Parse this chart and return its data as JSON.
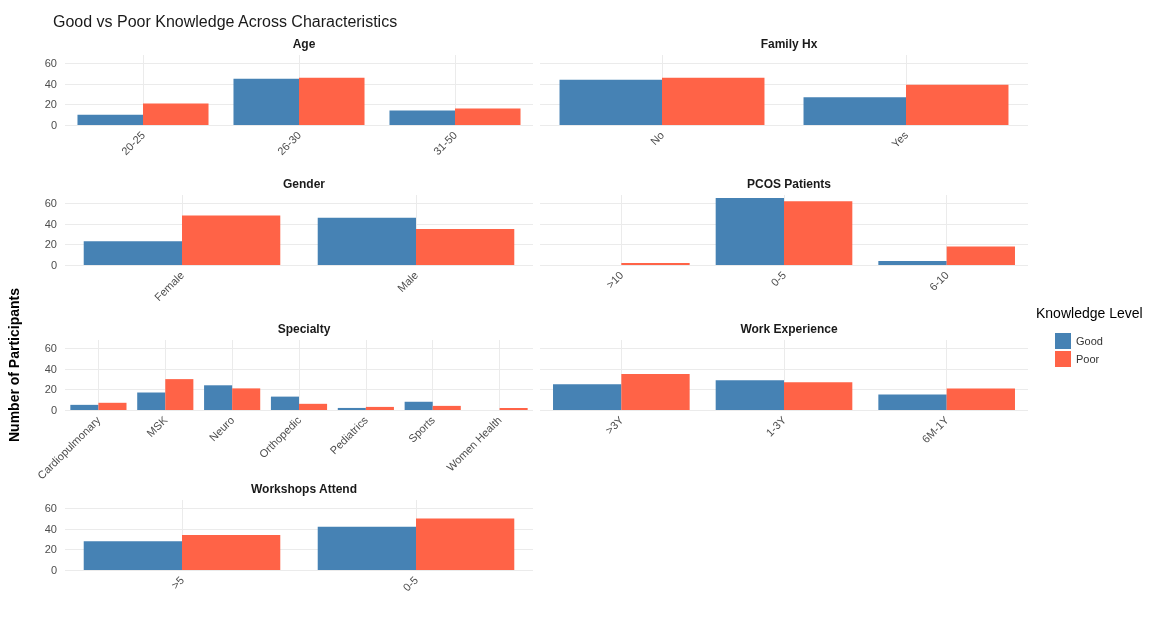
{
  "chart_data": [
    {
      "type": "bar",
      "title": "Good vs Poor Knowledge Across Characteristics",
      "subtitle": "Age",
      "legend_title": "Knowledge Level",
      "legend": "right",
      "grid": true,
      "ylim": [
        0,
        68
      ],
      "yticks": [
        0,
        20,
        40,
        60
      ],
      "categories": [
        "20-25",
        "26-30",
        "31-50"
      ],
      "series": [
        {
          "name": "Good",
          "color": "#4682b4",
          "values": [
            10,
            45,
            14
          ]
        },
        {
          "name": "Poor",
          "color": "#ff6347",
          "values": [
            21,
            46,
            16
          ]
        }
      ]
    },
    {
      "type": "bar",
      "subtitle": "Family Hx",
      "grid": true,
      "tick_labels": "x",
      "ylim": [
        0,
        68
      ],
      "yticks": [
        0,
        20,
        40,
        60
      ],
      "categories": [
        "No",
        "Yes"
      ],
      "series": [
        {
          "color": "#4682b4",
          "values": [
            44,
            27
          ]
        },
        {
          "color": "#ff6347",
          "values": [
            46,
            39
          ]
        }
      ]
    },
    {
      "type": "bar",
      "subtitle": "Gender",
      "grid": true,
      "ylim": [
        0,
        68
      ],
      "yticks": [
        0,
        20,
        40,
        60
      ],
      "categories": [
        "Female",
        "Male"
      ],
      "series": [
        {
          "color": "#4682b4",
          "values": [
            23,
            46
          ]
        },
        {
          "color": "#ff6347",
          "values": [
            48,
            35
          ]
        }
      ]
    },
    {
      "type": "bar",
      "subtitle": "PCOS Patients",
      "grid": true,
      "tick_labels": "x",
      "ylim": [
        0,
        68
      ],
      "yticks": [
        0,
        20,
        40,
        60
      ],
      "categories": [
        ">10",
        "0-5",
        "6-10"
      ],
      "series": [
        {
          "color": "#4682b4",
          "values": [
            null,
            65,
            4
          ]
        },
        {
          "color": "#ff6347",
          "values": [
            2,
            62,
            18
          ]
        }
      ]
    },
    {
      "type": "bar",
      "subtitle": "Specialty",
      "ylabel": "Number of Participants",
      "grid": true,
      "ylim": [
        0,
        68
      ],
      "yticks": [
        0,
        20,
        40,
        60
      ],
      "categories": [
        "Cardiopulmonary",
        "MSK",
        "Neuro",
        "Orthopedic",
        "Pediatrics",
        "Sports",
        "Women Health"
      ],
      "series": [
        {
          "color": "#4682b4",
          "values": [
            5,
            17,
            24,
            13,
            2,
            8,
            null
          ]
        },
        {
          "color": "#ff6347",
          "values": [
            7,
            30,
            21,
            6,
            3,
            4,
            2
          ]
        }
      ]
    },
    {
      "type": "bar",
      "subtitle": "Work Experience",
      "grid": true,
      "tick_labels": "x",
      "ylim": [
        0,
        68
      ],
      "yticks": [
        0,
        20,
        40,
        60
      ],
      "categories": [
        ">3Y",
        "1-3Y",
        "6M-1Y"
      ],
      "series": [
        {
          "color": "#4682b4",
          "values": [
            25,
            29,
            15
          ]
        },
        {
          "color": "#ff6347",
          "values": [
            35,
            27,
            21
          ]
        }
      ]
    },
    {
      "type": "bar",
      "subtitle": "Workshops Attend",
      "grid": true,
      "ylim": [
        0,
        68
      ],
      "yticks": [
        0,
        20,
        40,
        60
      ],
      "categories": [
        ">5",
        "0-5"
      ],
      "series": [
        {
          "color": "#4682b4",
          "values": [
            28,
            42
          ]
        },
        {
          "color": "#ff6347",
          "values": [
            34,
            50
          ]
        }
      ]
    }
  ]
}
